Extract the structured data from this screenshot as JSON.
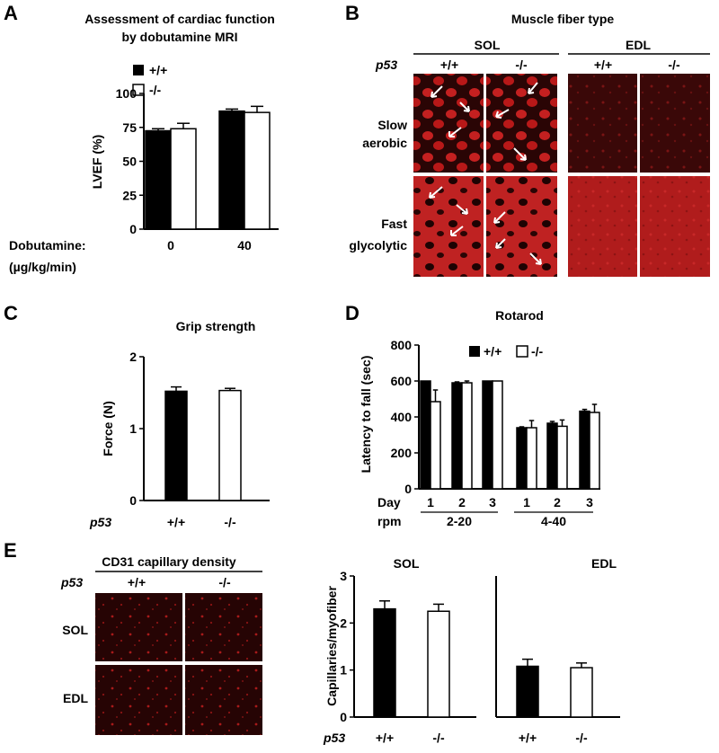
{
  "panels": {
    "A": {
      "label": "A",
      "title_lines": [
        "Assessment of cardiac function",
        "by dobutamine MRI"
      ],
      "legend": [
        "+/+",
        "-/-"
      ],
      "ylabel": "LVEF (%)",
      "xlabel_lines": [
        "Dobutamine:",
        "(µg/kg/min)"
      ]
    },
    "B": {
      "label": "B",
      "title": "Muscle fiber type",
      "muscle_headers": [
        "SOL",
        "EDL"
      ],
      "genotype_label": "p53",
      "genotypes": [
        "+/+",
        "-/-",
        "+/+",
        "-/-"
      ],
      "row_labels": [
        [
          "Slow",
          "aerobic"
        ],
        [
          "Fast",
          "glycolytic"
        ]
      ]
    },
    "C": {
      "label": "C",
      "title": "Grip strength",
      "ylabel": "Force (N)",
      "genotype_label": "p53"
    },
    "D": {
      "label": "D",
      "title": "Rotarod",
      "legend": [
        "+/+",
        "-/-"
      ],
      "ylabel": "Latency to fall (sec)",
      "row_day": "Day",
      "row_rpm": "rpm",
      "rpm_groups": [
        "2-20",
        "4-40"
      ]
    },
    "E": {
      "label": "E",
      "image_title": "CD31 capillary density",
      "genotype_label": "p53",
      "genotypes": [
        "+/+",
        "-/-"
      ],
      "row_labels": [
        "SOL",
        "EDL"
      ],
      "ylabel": "Capillaries/myofiber",
      "subplot_titles": [
        "SOL",
        "EDL"
      ]
    }
  },
  "colors": {
    "wildtype_fill": "#000000",
    "knockout_fill": "#ffffff",
    "micrograph_bg": "#2a0505",
    "stain": "#c42020"
  },
  "chart_data": [
    {
      "panel": "A",
      "type": "bar",
      "categories": [
        "0",
        "40"
      ],
      "series": [
        {
          "name": "+/+",
          "values": [
            72.5,
            87
          ],
          "errors": [
            1.5,
            1.5
          ]
        },
        {
          "name": "-/-",
          "values": [
            74,
            86
          ],
          "errors": [
            4,
            4.5
          ]
        }
      ],
      "ylim": [
        0,
        100
      ],
      "yticks": [
        0,
        25,
        50,
        75,
        100
      ]
    },
    {
      "panel": "C",
      "type": "bar",
      "categories": [
        "+/+",
        "-/-"
      ],
      "values": [
        1.52,
        1.53
      ],
      "errors": [
        0.06,
        0.03
      ],
      "ylim": [
        0,
        2
      ],
      "yticks": [
        0,
        1,
        2
      ]
    },
    {
      "panel": "D",
      "type": "bar",
      "categories": [
        "1",
        "2",
        "3",
        "1",
        "2",
        "3"
      ],
      "series": [
        {
          "name": "+/+",
          "values": [
            600,
            590,
            600,
            340,
            365,
            432
          ],
          "errors": [
            0,
            5,
            0,
            5,
            10,
            10
          ]
        },
        {
          "name": "-/-",
          "values": [
            485,
            590,
            600,
            340,
            348,
            425
          ],
          "errors": [
            65,
            10,
            0,
            40,
            35,
            45
          ]
        }
      ],
      "ylim": [
        0,
        800
      ],
      "yticks": [
        0,
        200,
        400,
        600,
        800
      ]
    },
    {
      "panel": "E-SOL",
      "type": "bar",
      "categories": [
        "+/+",
        "-/-"
      ],
      "values": [
        2.3,
        2.25
      ],
      "errors": [
        0.17,
        0.15
      ],
      "ylim": [
        0,
        3
      ],
      "yticks": [
        0,
        1,
        2,
        3
      ]
    },
    {
      "panel": "E-EDL",
      "type": "bar",
      "categories": [
        "+/+",
        "-/-"
      ],
      "values": [
        1.08,
        1.05
      ],
      "errors": [
        0.15,
        0.1
      ],
      "ylim": [
        0,
        3
      ]
    }
  ]
}
